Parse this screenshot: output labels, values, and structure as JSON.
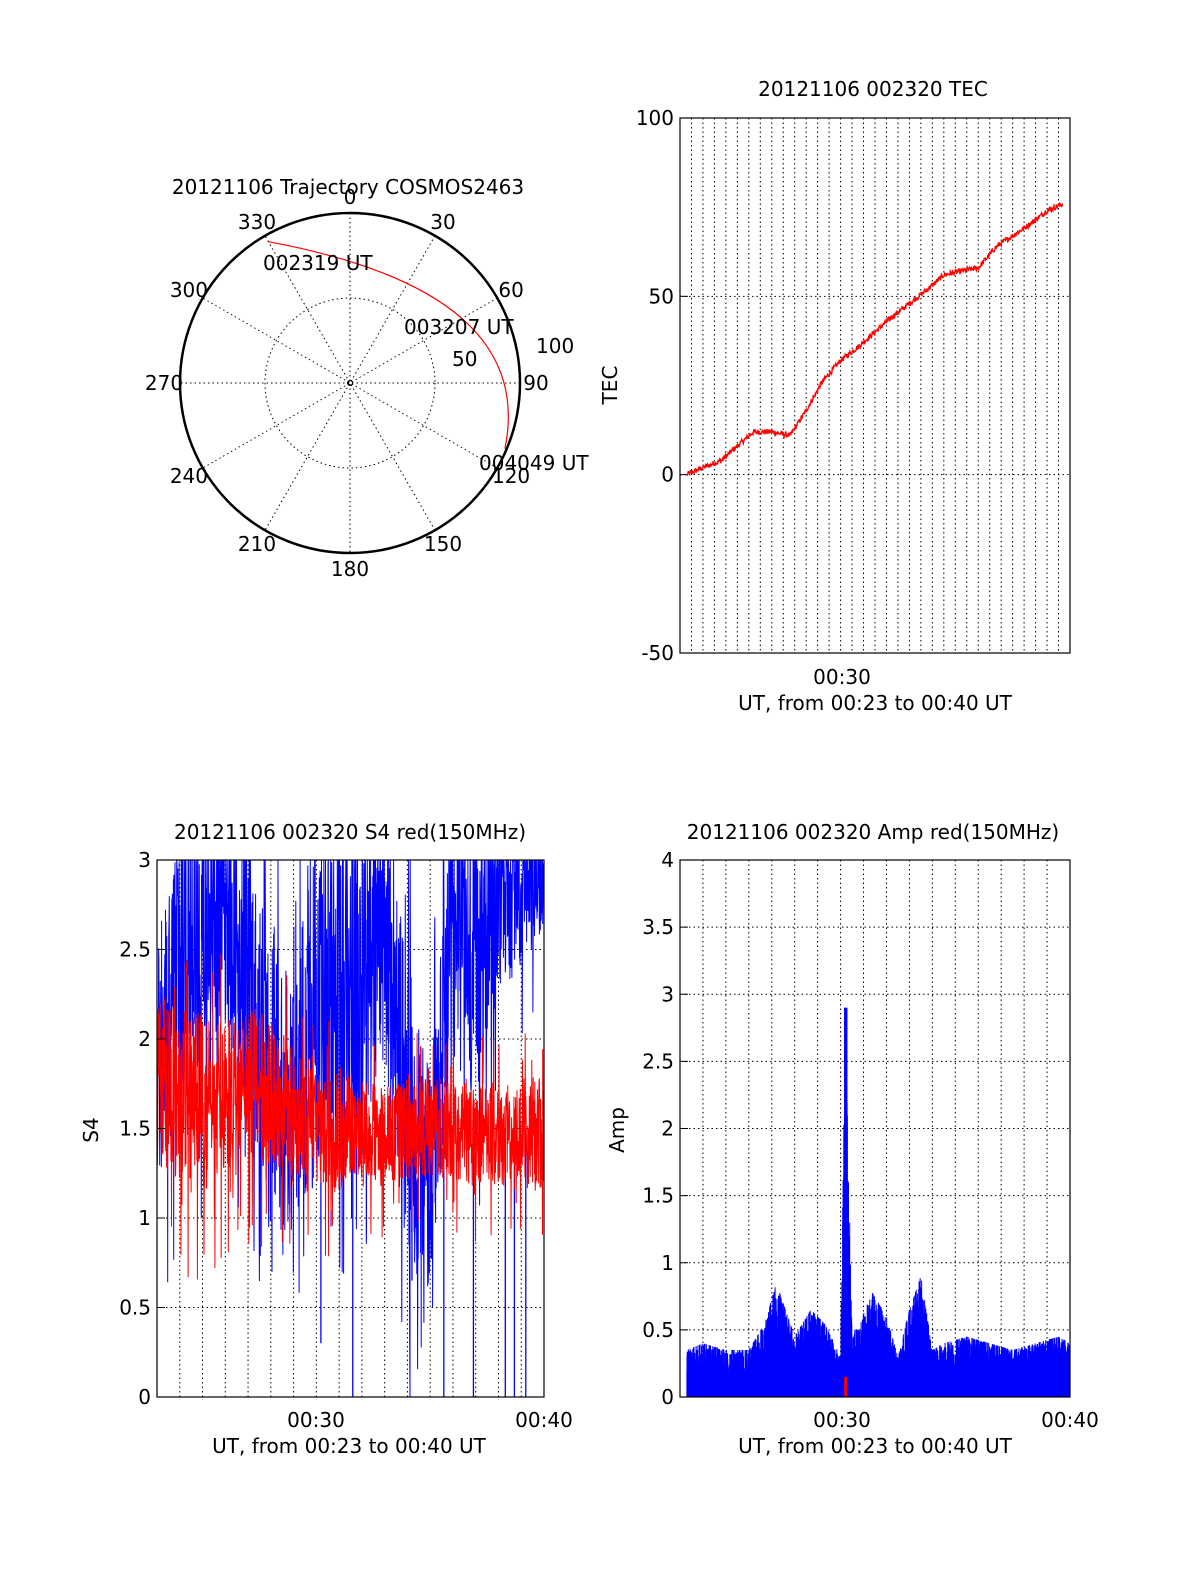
{
  "chart_data": [
    {
      "type": "polar",
      "title": "20121106 Trajectory COSMOS2463",
      "angle_labels": [
        "0",
        "30",
        "60",
        "90",
        "120",
        "150",
        "180",
        "210",
        "240",
        "270",
        "300",
        "330"
      ],
      "radial_labels": [
        "50",
        "100"
      ],
      "zenith_distance_range": [
        0,
        100
      ],
      "trajectory": [
        {
          "label": "002319 UT",
          "azimuth": 330,
          "zenith_distance": 96
        },
        {
          "label": "003207 UT",
          "azimuth": 60,
          "zenith_distance": 76
        },
        {
          "label": "004049 UT",
          "azimuth": 113,
          "zenith_distance": 99
        }
      ],
      "colors": {
        "trajectory": "#ff0000"
      }
    },
    {
      "type": "line",
      "title": "20121106 002320 TEC",
      "xlabel": "UT, from 00:23 to 00:40 UT",
      "ylabel": "TEC",
      "x_ticks": [
        "00:30"
      ],
      "y_ticks": [
        "-50",
        "0",
        "50",
        "100"
      ],
      "xlim_minutes": [
        23,
        40
      ],
      "ylim": [
        -50,
        100
      ],
      "grid": "vertical dotted",
      "series": [
        {
          "color": "#ff0000",
          "x_minutes": [
            23.3,
            24.0,
            24.8,
            25.5,
            26.2,
            27.0,
            27.8,
            28.5,
            29.2,
            30.0,
            30.8,
            31.5,
            32.2,
            33.0,
            33.8,
            34.5,
            35.2,
            36.0,
            36.8,
            37.5,
            38.2,
            39.0,
            39.7
          ],
          "values": [
            0,
            2,
            4,
            8,
            12,
            12,
            11,
            18,
            26,
            32,
            36,
            40,
            44,
            48,
            52,
            56,
            57,
            58,
            64,
            67,
            70,
            74,
            76
          ]
        }
      ]
    },
    {
      "type": "line",
      "title": "20121106 002320 S4 red(150MHz)",
      "xlabel": "UT, from 00:23 to 00:40 UT",
      "ylabel": "S4",
      "x_ticks": [
        "00:30",
        "00:40"
      ],
      "y_ticks": [
        "0",
        "0.5",
        "1",
        "1.5",
        "2",
        "2.5",
        "3"
      ],
      "xlim_minutes": [
        23,
        40
      ],
      "ylim": [
        0,
        3
      ],
      "grid": "dotted",
      "series": [
        {
          "color": "#0000ff",
          "x_minutes": [
            23.0,
            24.0,
            25.0,
            26.0,
            27.0,
            28.0,
            29.0,
            30.0,
            31.0,
            32.0,
            33.0,
            34.0,
            35.0,
            36.0,
            37.0,
            38.0,
            39.0,
            40.0
          ],
          "values": [
            1.8,
            2.4,
            2.6,
            2.8,
            2.3,
            1.8,
            1.6,
            2.2,
            2.4,
            2.4,
            2.6,
            1.6,
            1.2,
            2.6,
            2.3,
            2.8,
            2.8,
            2.9
          ],
          "spread": [
            0.5,
            0.6,
            0.6,
            0.5,
            0.6,
            0.6,
            0.5,
            0.7,
            0.7,
            0.7,
            0.5,
            0.6,
            0.5,
            0.5,
            0.6,
            0.4,
            0.3,
            0.2
          ],
          "dips": [
            {
              "x_minutes": 30.2,
              "value": 0.3
            },
            {
              "x_minutes": 31.6,
              "value": 0
            },
            {
              "x_minutes": 34.2,
              "value": 0.65
            },
            {
              "x_minutes": 35.6,
              "value": 0
            },
            {
              "x_minutes": 36.9,
              "value": 0
            },
            {
              "x_minutes": 38.3,
              "value": 0
            },
            {
              "x_minutes": 38.7,
              "value": 0
            },
            {
              "x_minutes": 39.2,
              "value": 0
            }
          ]
        },
        {
          "color": "#ff0000",
          "x_minutes": [
            23.0,
            24.0,
            25.0,
            26.0,
            27.0,
            28.0,
            29.0,
            30.0,
            31.0,
            32.0,
            33.0,
            34.0,
            35.0,
            36.0,
            37.0,
            38.0,
            39.0,
            40.0
          ],
          "values": [
            1.75,
            1.7,
            1.65,
            1.7,
            1.75,
            1.7,
            1.6,
            1.55,
            1.5,
            1.5,
            1.45,
            1.5,
            1.5,
            1.5,
            1.45,
            1.45,
            1.5,
            1.45
          ],
          "spread": [
            0.3,
            0.35,
            0.35,
            0.3,
            0.3,
            0.3,
            0.25,
            0.25,
            0.25,
            0.2,
            0.2,
            0.2,
            0.2,
            0.2,
            0.2,
            0.2,
            0.2,
            0.25
          ]
        }
      ]
    },
    {
      "type": "line",
      "title": "20121106 002320 Amp red(150MHz)",
      "xlabel": "UT, from 00:23 to 00:40 UT",
      "ylabel": "Amp",
      "x_ticks": [
        "00:30",
        "00:40"
      ],
      "y_ticks": [
        "0",
        "0.5",
        "1",
        "1.5",
        "2",
        "2.5",
        "3",
        "3.5",
        "4"
      ],
      "xlim_minutes": [
        23,
        40
      ],
      "ylim": [
        0,
        4
      ],
      "grid": "dotted",
      "series": [
        {
          "color": "#0000ff",
          "x_minutes": [
            23.3,
            24.0,
            25.0,
            26.0,
            26.7,
            27.2,
            28.0,
            28.7,
            29.3,
            30.0,
            30.2,
            30.5,
            30.8,
            31.3,
            32.0,
            32.5,
            33.0,
            33.5,
            34.0,
            34.5,
            35.5,
            36.5,
            37.5,
            38.5,
            39.5,
            40.0
          ],
          "values": [
            0.35,
            0.4,
            0.35,
            0.35,
            0.55,
            0.85,
            0.45,
            0.65,
            0.55,
            0.3,
            2.85,
            0.5,
            0.5,
            0.8,
            0.6,
            0.3,
            0.65,
            0.9,
            0.35,
            0.4,
            0.45,
            0.4,
            0.35,
            0.4,
            0.45,
            0.4
          ]
        },
        {
          "color": "#ff0000",
          "x_minutes": [
            30.2
          ],
          "values": [
            0.15
          ]
        }
      ]
    }
  ]
}
